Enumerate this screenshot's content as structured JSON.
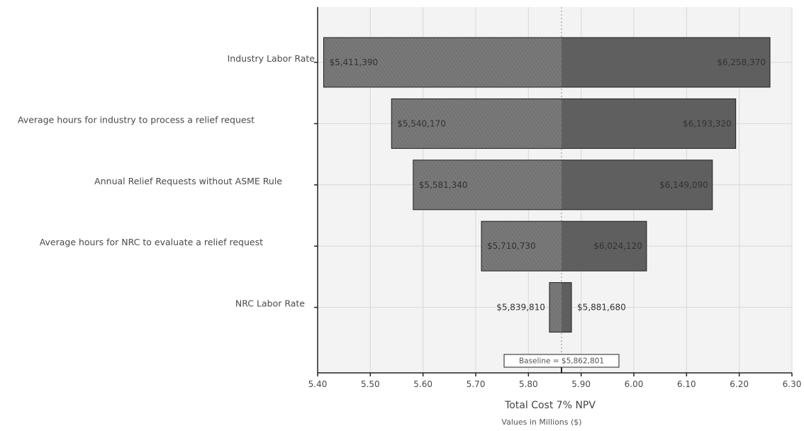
{
  "chart_data": {
    "type": "bar",
    "subtype": "tornado",
    "orientation": "horizontal",
    "title": "",
    "xlabel": "Total Cost 7% NPV",
    "xsublabel": "Values in Millions ($)",
    "ylabel": "",
    "xlim": [
      5.4,
      6.3
    ],
    "xticks": [
      "5.40",
      "5.50",
      "5.60",
      "5.70",
      "5.80",
      "5.90",
      "6.00",
      "6.10",
      "6.20",
      "6.30"
    ],
    "grid": true,
    "legend": "none",
    "baseline": {
      "value": 5.862801,
      "label": "Baseline = $5,862,801"
    },
    "categories": [
      "Industry Labor Rate",
      "Average hours for industry to process a relief request",
      "Annual Relief Requests without ASME Rule",
      "Average hours for NRC to evaluate a relief request",
      "NRC Labor Rate"
    ],
    "series": [
      {
        "name": "",
        "values": [
          5.41139,
          5.54017,
          5.58134,
          5.71073,
          5.83981
        ]
      },
      {
        "name": "",
        "values": [
          6.25837,
          6.19332,
          6.14909,
          6.02412,
          5.88168
        ]
      }
    ],
    "low_labels": [
      "$5,411,390",
      "$5,540,170",
      "$5,581,340",
      "$5,710,730",
      "$5,839,810"
    ],
    "high_labels": [
      "$6,258,370",
      "$6,193,320",
      "$6,149,090",
      "$6,024,120",
      "$5,881,680"
    ],
    "colors": {
      "plot_background": "#f3f3f3",
      "grid": "#d8d8d8",
      "bar_low": "#6f6f6f",
      "bar_high": "#5f5f5f",
      "bar_stroke": "#1f1f1f",
      "axis": "#222222",
      "text": "#4a4a4a"
    }
  }
}
